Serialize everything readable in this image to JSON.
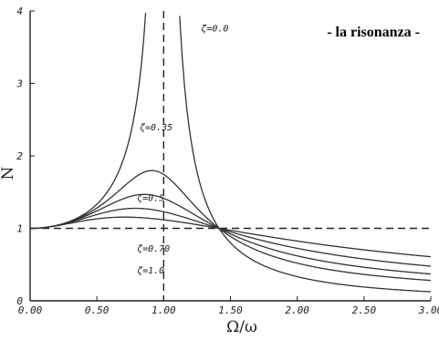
{
  "chart_data": {
    "type": "line",
    "title": "- la risonanza -",
    "xlabel": "Ω/ω",
    "ylabel": "N",
    "xlim": [
      0,
      3
    ],
    "ylim": [
      0,
      4
    ],
    "x_ticks": [
      "0.00",
      "0.50",
      "1.00",
      "1.50",
      "2.00",
      "2.50",
      "3.00"
    ],
    "y_ticks": [
      "0",
      "1",
      "2",
      "3",
      "4"
    ],
    "grid": false,
    "reference_lines": [
      {
        "orientation": "vertical",
        "value": 1.0,
        "style": "dashed"
      },
      {
        "orientation": "horizontal",
        "value": 1.0,
        "style": "dashed"
      }
    ],
    "series": [
      {
        "name": "ζ=0.0",
        "zeta": 0.0,
        "x": [
          0.0,
          0.25,
          0.5,
          0.6,
          0.7,
          0.75,
          1.25,
          1.3,
          1.4,
          1.5,
          1.75,
          2.0,
          2.5,
          3.0
        ],
        "values": [
          1.0,
          1.07,
          1.33,
          1.56,
          1.96,
          2.29,
          1.78,
          1.45,
          1.04,
          0.8,
          0.48,
          0.33,
          0.19,
          0.13
        ]
      },
      {
        "name": "ζ=0.35",
        "zeta": 0.35,
        "x": [
          0.0,
          0.25,
          0.5,
          0.7,
          0.85,
          0.9,
          1.0,
          1.2,
          1.5,
          2.0,
          2.5,
          3.0
        ],
        "values": [
          1.0,
          1.06,
          1.26,
          1.58,
          1.67,
          1.66,
          1.43,
          1.02,
          0.66,
          0.35,
          0.2,
          0.13
        ]
      },
      {
        "name": "ζ=0.5",
        "zeta": 0.5,
        "x": [
          0.0,
          0.25,
          0.5,
          0.7,
          0.9,
          1.0,
          1.2,
          1.5,
          2.0,
          2.5,
          3.0
        ],
        "values": [
          1.0,
          1.05,
          1.15,
          1.24,
          1.15,
          1.0,
          0.79,
          0.54,
          0.3,
          0.18,
          0.12
        ]
      },
      {
        "name": "ζ=0.70",
        "zeta": 0.7,
        "x": [
          0.0,
          0.25,
          0.5,
          0.75,
          1.0,
          1.25,
          1.5,
          2.0,
          2.5,
          3.0
        ],
        "values": [
          1.0,
          1.0,
          0.97,
          0.87,
          0.71,
          0.56,
          0.44,
          0.28,
          0.18,
          0.12
        ]
      },
      {
        "name": "ζ=1.0",
        "zeta": 1.0,
        "x": [
          0.0,
          0.25,
          0.5,
          0.75,
          1.0,
          1.25,
          1.5,
          2.0,
          2.5,
          3.0
        ],
        "values": [
          1.0,
          0.94,
          0.8,
          0.64,
          0.5,
          0.39,
          0.31,
          0.2,
          0.14,
          0.1
        ]
      }
    ]
  }
}
